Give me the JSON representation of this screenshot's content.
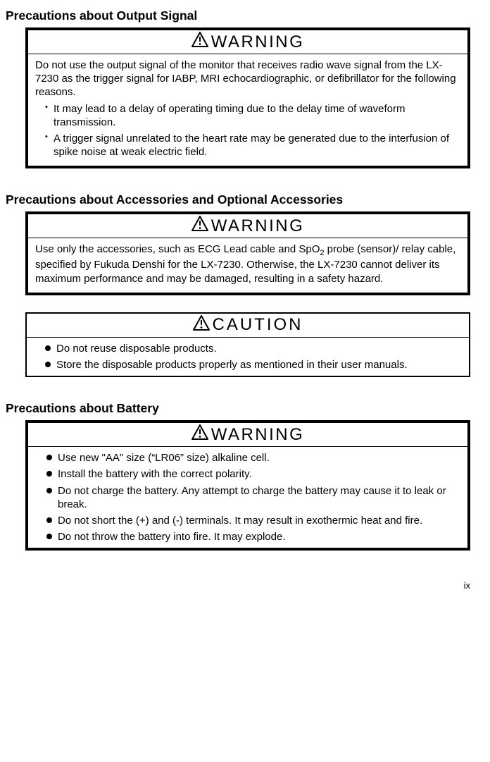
{
  "sections": [
    {
      "heading": "Precautions about Output Signal",
      "boxes": [
        {
          "label": "WARNING",
          "thick": true,
          "paragraph": "Do not use the output signal of the monitor that receives radio wave signal from the LX-7230 as the trigger signal for IABP, MRI echocardiographic, or defibrillator for the following reasons.",
          "subbullets": [
            "It may lead to a delay of operating timing due to the delay time of waveform transmission.",
            "A trigger signal unrelated to the heart rate may be generated due to the interfusion of spike noise at weak electric field."
          ]
        }
      ]
    },
    {
      "heading": "Precautions about Accessories and Optional Accessories",
      "boxes": [
        {
          "label": "WARNING",
          "thick": true,
          "html": "Use only the accessories, such as ECG Lead cable and SpO<span class=\"subscript\">2</span> probe (sensor)/ relay cable, specified by Fukuda Denshi for the LX-7230. Otherwise, the LX-7230 cannot deliver its maximum performance and may be damaged, resulting in a safety hazard."
        },
        {
          "label": "CAUTION",
          "thick": false,
          "bullets": [
            "Do not reuse disposable products.",
            "Store the disposable products properly as mentioned in their user manuals."
          ]
        }
      ]
    },
    {
      "heading": "Precautions about Battery",
      "boxes": [
        {
          "label": "WARNING",
          "thick": true,
          "bullets": [
            "Use new \"AA\" size (“LR06” size) alkaline cell.",
            "Install the battery with the correct polarity.",
            "Do not charge the battery. Any attempt to charge the battery may cause it to leak or break.",
            "Do not short the (+) and (-) terminals. It may result in exothermic heat and fire.",
            "Do not throw the battery into fire. It may explode."
          ]
        }
      ]
    }
  ],
  "page_number": "ix"
}
